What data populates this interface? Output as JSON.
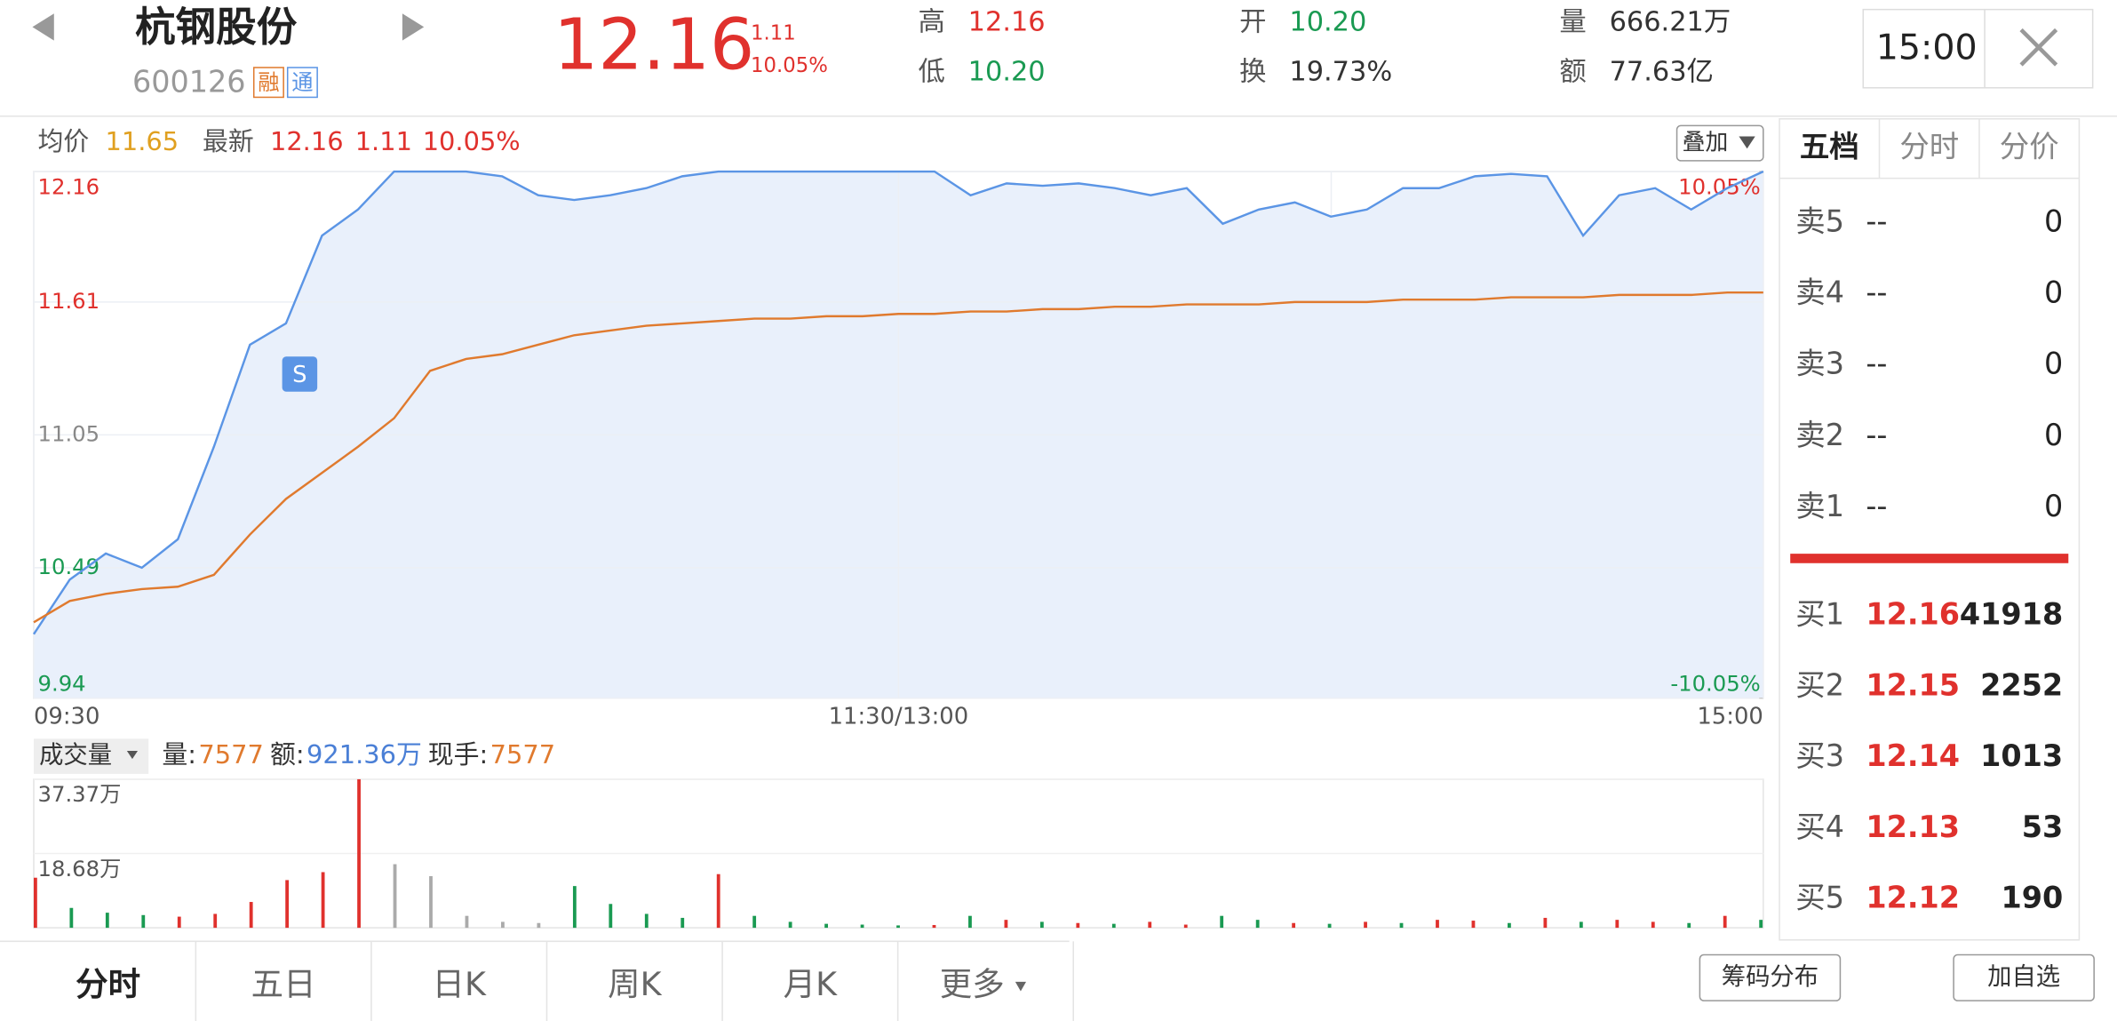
{
  "header": {
    "name": "杭钢股份",
    "code": "600126",
    "badges": [
      "融",
      "通"
    ],
    "price": "12.16",
    "change": "1.11",
    "pct": "10.05%",
    "stats": [
      {
        "label": "高",
        "value": "12.16"
      },
      {
        "label": "低",
        "value": "10.20"
      },
      {
        "label": "开",
        "value": "10.20"
      },
      {
        "label": "换",
        "value": "19.73%"
      },
      {
        "label": "量",
        "value": "666.21万"
      },
      {
        "label": "额",
        "value": "77.63亿"
      }
    ],
    "time": "15:00"
  },
  "info": {
    "avg_label": "均价",
    "avg": "11.65",
    "latest_label": "最新",
    "latest": "12.16",
    "change": "1.11",
    "pct": "10.05%",
    "overlay": "叠加",
    "marker": "S"
  },
  "volume_info": {
    "selector": "成交量",
    "vol_label": "量:",
    "vol": "7577",
    "amt_label": "额:",
    "amt": "921.36万",
    "hand_label": "现手:",
    "hand": "7577"
  },
  "orderbook": {
    "tabs": [
      "五档",
      "分时",
      "分价"
    ],
    "asks": [
      {
        "label": "卖5",
        "price": "--",
        "qty": "0"
      },
      {
        "label": "卖4",
        "price": "--",
        "qty": "0"
      },
      {
        "label": "卖3",
        "price": "--",
        "qty": "0"
      },
      {
        "label": "卖2",
        "price": "--",
        "qty": "0"
      },
      {
        "label": "卖1",
        "price": "--",
        "qty": "0"
      }
    ],
    "bids": [
      {
        "label": "买1",
        "price": "12.16",
        "qty": "41918"
      },
      {
        "label": "买2",
        "price": "12.15",
        "qty": "2252"
      },
      {
        "label": "买3",
        "price": "12.14",
        "qty": "1013"
      },
      {
        "label": "买4",
        "price": "12.13",
        "qty": "53"
      },
      {
        "label": "买5",
        "price": "12.12",
        "qty": "190"
      }
    ]
  },
  "bottom_tabs": [
    "分时",
    "五日",
    "日K",
    "周K",
    "月K",
    "更多"
  ],
  "buttons": [
    "筹码分布",
    "加自选"
  ],
  "chart_data": [
    {
      "type": "line",
      "x": [
        0,
        5,
        10,
        15,
        20,
        25,
        30,
        35,
        40,
        45,
        50,
        55,
        60,
        65,
        70,
        75,
        80,
        85,
        90,
        95,
        100,
        105,
        110,
        115,
        120,
        125,
        130,
        135,
        140,
        145,
        150,
        155,
        160,
        165,
        170,
        175,
        180,
        185,
        190,
        195,
        200,
        205,
        210,
        215,
        220,
        225,
        230,
        235,
        240
      ],
      "xlim": [
        0,
        240
      ],
      "xticks": [
        {
          "value": 0,
          "label": "09:30"
        },
        {
          "value": 120,
          "label": "11:30/13:00"
        },
        {
          "value": 240,
          "label": "15:00"
        }
      ],
      "ylim": [
        9.94,
        12.16
      ],
      "yticks": [
        12.16,
        11.61,
        11.05,
        10.49,
        9.94
      ],
      "y2lim": [
        -10.05,
        10.05
      ],
      "y2ticks": [
        {
          "value": 10.05,
          "label": "10.05%"
        },
        {
          "value": -10.05,
          "label": "-10.05%"
        }
      ],
      "series": [
        {
          "name": "最新",
          "color": "#5b95e5",
          "values": [
            10.21,
            10.44,
            10.55,
            10.49,
            10.61,
            11.0,
            11.43,
            11.52,
            11.89,
            12.0,
            12.16,
            12.16,
            12.16,
            12.14,
            12.06,
            12.04,
            12.06,
            12.09,
            12.14,
            12.16,
            12.16,
            12.16,
            12.16,
            12.16,
            12.16,
            12.16,
            12.06,
            12.11,
            12.1,
            12.11,
            12.09,
            12.06,
            12.09,
            11.94,
            12.0,
            12.03,
            11.97,
            12.0,
            12.09,
            12.09,
            12.14,
            12.15,
            12.14,
            11.89,
            12.06,
            12.09,
            12.0,
            12.09,
            12.16
          ]
        },
        {
          "name": "均价",
          "color": "#e07a2e",
          "values": [
            10.26,
            10.35,
            10.38,
            10.4,
            10.41,
            10.46,
            10.63,
            10.78,
            10.89,
            11.0,
            11.12,
            11.32,
            11.37,
            11.39,
            11.43,
            11.47,
            11.49,
            11.51,
            11.52,
            11.53,
            11.54,
            11.54,
            11.55,
            11.55,
            11.56,
            11.56,
            11.57,
            11.57,
            11.58,
            11.58,
            11.59,
            11.59,
            11.6,
            11.6,
            11.6,
            11.61,
            11.61,
            11.61,
            11.62,
            11.62,
            11.62,
            11.63,
            11.63,
            11.63,
            11.64,
            11.64,
            11.64,
            11.65,
            11.65
          ]
        }
      ]
    },
    {
      "type": "bar",
      "x": [
        0,
        5,
        10,
        15,
        20,
        25,
        30,
        35,
        40,
        45,
        50,
        55,
        60,
        65,
        70,
        75,
        80,
        85,
        90,
        95,
        100,
        105,
        110,
        115,
        120,
        125,
        130,
        135,
        140,
        145,
        150,
        155,
        160,
        165,
        170,
        175,
        180,
        185,
        190,
        195,
        200,
        205,
        210,
        215,
        220,
        225,
        230,
        235,
        240
      ],
      "xlim": [
        0,
        240
      ],
      "ylim": [
        0,
        37.37
      ],
      "yticks": [
        {
          "value": 37.37,
          "label": "37.37万"
        },
        {
          "value": 18.68,
          "label": "18.68万"
        }
      ],
      "values": [
        12.6,
        5.0,
        3.8,
        3.2,
        2.8,
        3.5,
        6.5,
        12.0,
        14.0,
        37.37,
        16.0,
        13.0,
        3.0,
        1.5,
        1.2,
        10.5,
        6.0,
        3.5,
        2.5,
        13.5,
        3.0,
        1.5,
        1.0,
        0.8,
        0.6,
        0.7,
        3.0,
        2.0,
        1.5,
        1.2,
        1.0,
        1.5,
        0.8,
        3.0,
        2.0,
        1.2,
        1.0,
        1.5,
        1.2,
        2.0,
        1.8,
        1.2,
        2.5,
        1.5,
        2.0,
        1.5,
        1.2,
        3.0,
        2.0
      ],
      "colors": [
        "#e0312d",
        "#1a9a52",
        "#1a9a52",
        "#1a9a52",
        "#e0312d",
        "#e0312d",
        "#e0312d",
        "#e0312d",
        "#e0312d",
        "#e0312d",
        "#aaaaaa",
        "#aaaaaa",
        "#aaaaaa",
        "#aaaaaa",
        "#aaaaaa",
        "#1a9a52",
        "#1a9a52",
        "#1a9a52",
        "#1a9a52",
        "#e0312d",
        "#1a9a52",
        "#1a9a52",
        "#1a9a52",
        "#1a9a52",
        "#1a9a52",
        "#e0312d",
        "#1a9a52",
        "#e0312d",
        "#1a9a52",
        "#e0312d",
        "#1a9a52",
        "#e0312d",
        "#e0312d",
        "#1a9a52",
        "#1a9a52",
        "#e0312d",
        "#1a9a52",
        "#e0312d",
        "#1a9a52",
        "#e0312d",
        "#e0312d",
        "#1a9a52",
        "#e0312d",
        "#1a9a52",
        "#e0312d",
        "#e0312d",
        "#1a9a52",
        "#e0312d",
        "#1a9a52"
      ]
    }
  ]
}
